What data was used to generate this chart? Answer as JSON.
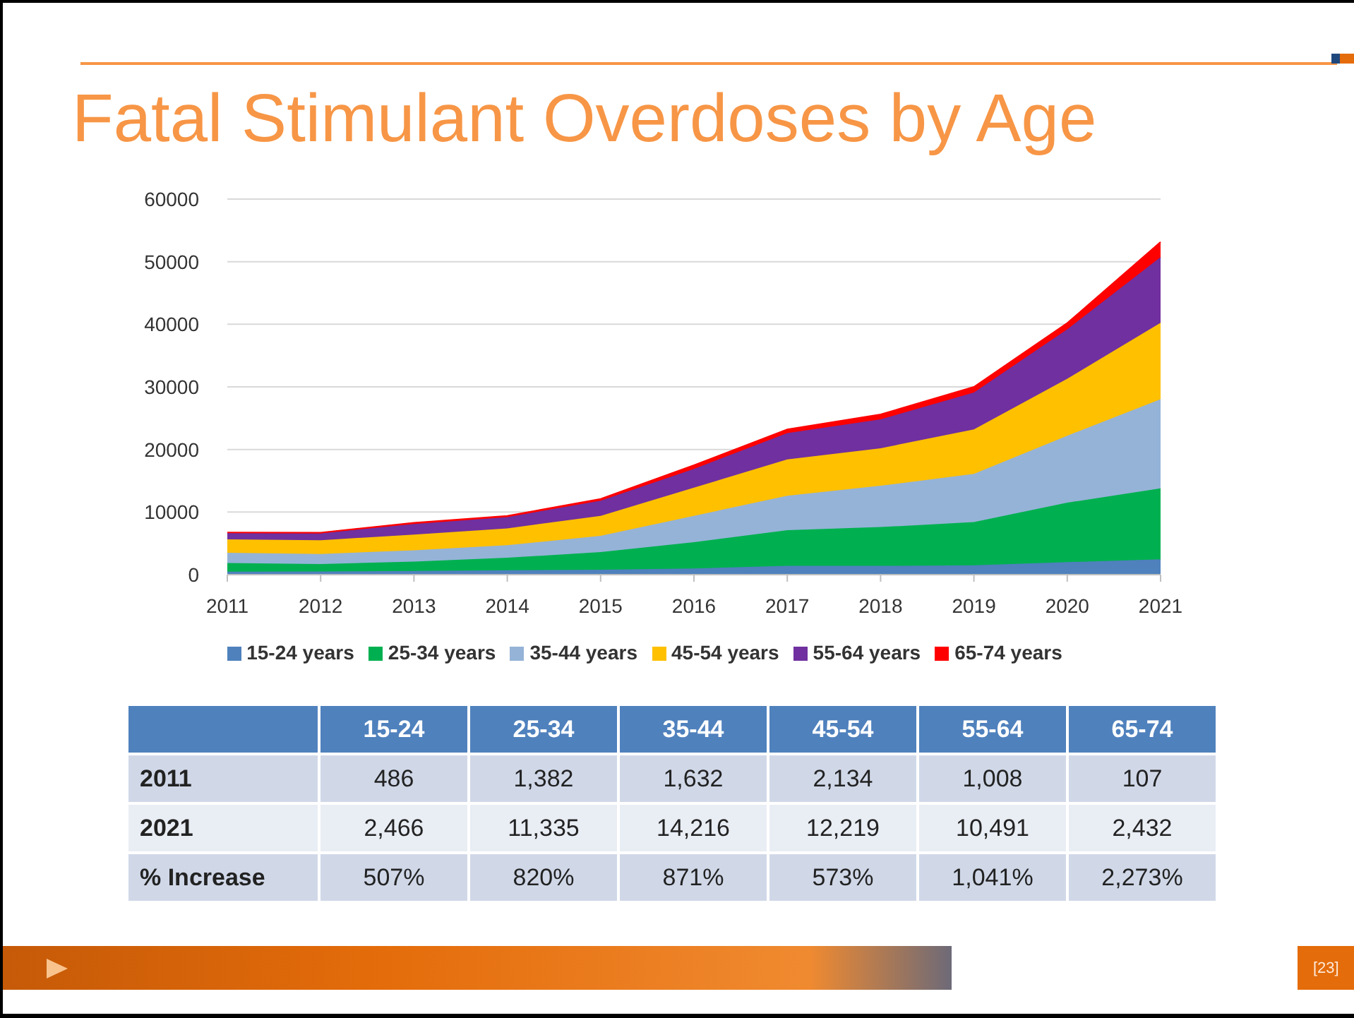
{
  "chart_data": {
    "type": "area",
    "title": "Fatal Stimulant Overdoses by Age",
    "stacked": true,
    "grid": "y",
    "legend": "bottom",
    "categories": [
      "2011",
      "2012",
      "2013",
      "2014",
      "2015",
      "2016",
      "2017",
      "2018",
      "2019",
      "2020",
      "2021"
    ],
    "ylim": [
      0,
      60000
    ],
    "yticks": [
      0,
      10000,
      20000,
      30000,
      40000,
      50000,
      60000
    ],
    "series": [
      {
        "name": "15-24 years",
        "color": "#4f81bd",
        "values": [
          486,
          500,
          600,
          700,
          800,
          1000,
          1400,
          1400,
          1500,
          2000,
          2466
        ]
      },
      {
        "name": "25-34 years",
        "color": "#00b050",
        "values": [
          1382,
          1200,
          1500,
          2000,
          2800,
          4200,
          5700,
          6200,
          6900,
          9500,
          11335
        ]
      },
      {
        "name": "35-44 years",
        "color": "#95b3d7",
        "values": [
          1632,
          1600,
          1800,
          2000,
          2600,
          4200,
          5500,
          6600,
          7700,
          10700,
          14216
        ]
      },
      {
        "name": "45-54 years",
        "color": "#ffc000",
        "values": [
          2134,
          2200,
          2500,
          2700,
          3200,
          4500,
          5800,
          6000,
          7100,
          9100,
          12219
        ]
      },
      {
        "name": "55-64 years",
        "color": "#7030a0",
        "values": [
          1008,
          1100,
          1700,
          1800,
          2400,
          3000,
          4200,
          4600,
          5900,
          7900,
          10491
        ]
      },
      {
        "name": "65-74 years",
        "color": "#ff0000",
        "values": [
          107,
          100,
          200,
          200,
          300,
          600,
          600,
          800,
          900,
          1000,
          2432
        ]
      }
    ],
    "annotations": [
      "15-24",
      "25-34",
      "35-44",
      "45-54",
      "55-64",
      "65-74",
      "2011",
      "486",
      "1,382",
      "1,632",
      "2,134",
      "1,008",
      "107",
      "2021",
      "2,466",
      "11,335",
      "14,216",
      "12,219",
      "10,491",
      "2,432",
      "% Increase",
      "507%",
      "820%",
      "871%",
      "573%",
      "1,041%",
      "2,273%",
      "[23]"
    ]
  }
}
